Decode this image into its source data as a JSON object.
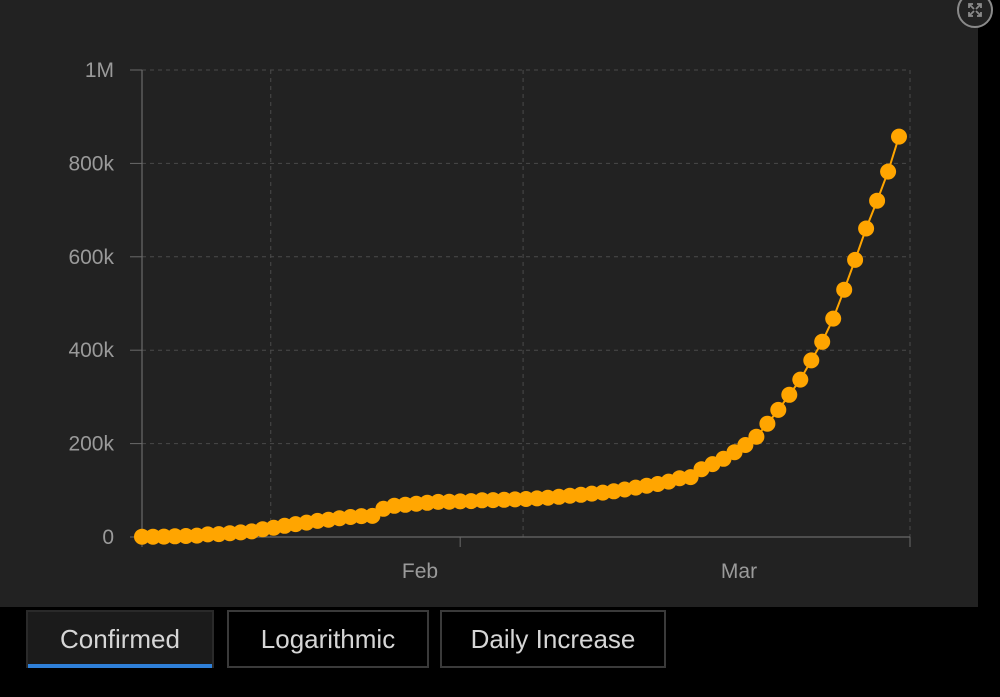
{
  "chart_data": {
    "type": "line",
    "title": "",
    "xlabel": "",
    "ylabel": "",
    "x_range": [
      "2020-01-22",
      "2020-04-01"
    ],
    "ylim": [
      0,
      1000000
    ],
    "yticks": [
      0,
      200000,
      400000,
      600000,
      800000,
      1000000
    ],
    "ytick_labels": [
      "0",
      "200k",
      "400k",
      "600k",
      "800k",
      "1M"
    ],
    "xtick_labels": [
      {
        "date": "2020-02-01",
        "label": "Feb"
      },
      {
        "date": "2020-03-01",
        "label": "Mar"
      }
    ],
    "grid": true,
    "marker": "circle",
    "series_color": "#ffa500",
    "series": [
      {
        "x": [
          "2020-01-22",
          "2020-01-23",
          "2020-01-24",
          "2020-01-25",
          "2020-01-26",
          "2020-01-27",
          "2020-01-28",
          "2020-01-29",
          "2020-01-30",
          "2020-01-31",
          "2020-02-01",
          "2020-02-02",
          "2020-02-03",
          "2020-02-04",
          "2020-02-05",
          "2020-02-06",
          "2020-02-07",
          "2020-02-08",
          "2020-02-09",
          "2020-02-10",
          "2020-02-11",
          "2020-02-12",
          "2020-02-13",
          "2020-02-14",
          "2020-02-15",
          "2020-02-16",
          "2020-02-17",
          "2020-02-18",
          "2020-02-19",
          "2020-02-20",
          "2020-02-21",
          "2020-02-22",
          "2020-02-23",
          "2020-02-24",
          "2020-02-25",
          "2020-02-26",
          "2020-02-27",
          "2020-02-28",
          "2020-02-29",
          "2020-03-01",
          "2020-03-02",
          "2020-03-03",
          "2020-03-04",
          "2020-03-05",
          "2020-03-06",
          "2020-03-07",
          "2020-03-08",
          "2020-03-09",
          "2020-03-10",
          "2020-03-11",
          "2020-03-12",
          "2020-03-13",
          "2020-03-14",
          "2020-03-15",
          "2020-03-16",
          "2020-03-17",
          "2020-03-18",
          "2020-03-19",
          "2020-03-20",
          "2020-03-21",
          "2020-03-22",
          "2020-03-23",
          "2020-03-24",
          "2020-03-25",
          "2020-03-26",
          "2020-03-27",
          "2020-03-28",
          "2020-03-29",
          "2020-03-30",
          "2020-03-31"
        ],
        "values": [
          555,
          653,
          941,
          1434,
          2118,
          2927,
          5578,
          6166,
          8234,
          9927,
          12038,
          16787,
          19881,
          23892,
          27635,
          30794,
          34391,
          37120,
          40150,
          42762,
          44802,
          45221,
          60368,
          66885,
          69030,
          71224,
          73258,
          75136,
          75639,
          76197,
          76823,
          78579,
          78965,
          79568,
          80413,
          81395,
          82754,
          84120,
          86011,
          88369,
          90306,
          92840,
          95120,
          97886,
          101801,
          105847,
          109821,
          113590,
          118620,
          125875,
          128352,
          145205,
          156101,
          167454,
          181574,
          197102,
          214821,
          242570,
          272208,
          304507,
          336953,
          378235,
          418045,
          467653,
          529591,
          593291,
          660706,
          720117,
          782365,
          857487
        ]
      }
    ]
  },
  "tabs": [
    {
      "label": "Confirmed",
      "active": true
    },
    {
      "label": "Logarithmic",
      "active": false
    },
    {
      "label": "Daily Increase",
      "active": false
    }
  ],
  "icons": {
    "expand": "expand-icon"
  }
}
